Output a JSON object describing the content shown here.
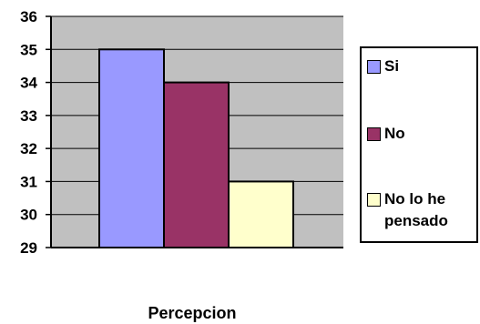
{
  "chart_data": {
    "type": "bar",
    "categories": [
      "Percepcion"
    ],
    "series": [
      {
        "name": "Si",
        "values": [
          35
        ],
        "color": "#9999ff"
      },
      {
        "name": "No",
        "values": [
          34
        ],
        "color": "#993366"
      },
      {
        "name": "No lo he pensado",
        "values": [
          31
        ],
        "color": "#ffffcc"
      }
    ],
    "xlabel": "Percepcion",
    "ylabel": "",
    "ylim": [
      29,
      36
    ],
    "yticks": [
      "29",
      "30",
      "31",
      "32",
      "33",
      "34",
      "35",
      "36"
    ],
    "plot_background": "#c0c0c0",
    "grid": true,
    "legend_position": "right"
  }
}
